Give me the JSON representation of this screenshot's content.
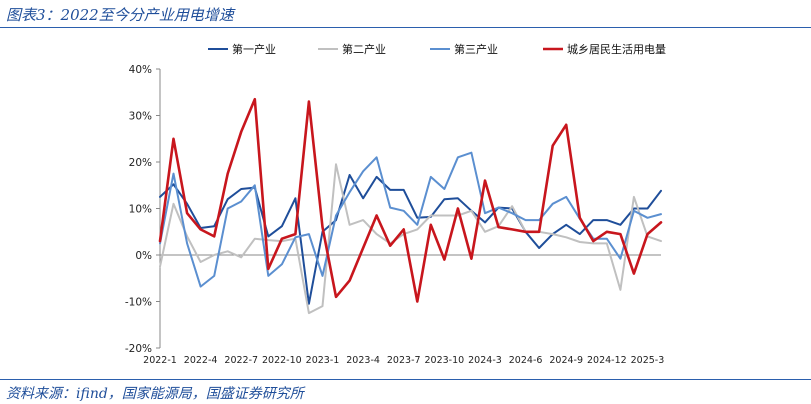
{
  "title": "图表3：2022至今分产业用电增速",
  "source": "资料来源：ifind，国家能源局，国盛证券研究所",
  "chart_data": {
    "type": "line",
    "title": "",
    "xlabel": "",
    "ylabel": "",
    "ylim": [
      -20,
      40
    ],
    "yticks": [
      -20,
      -10,
      0,
      10,
      20,
      30,
      40
    ],
    "ytick_labels": [
      "-20%",
      "-10%",
      "0%",
      "10%",
      "20%",
      "30%",
      "40%"
    ],
    "x": [
      "2022-1",
      "2022-2",
      "2022-3",
      "2022-4",
      "2022-5",
      "2022-6",
      "2022-7",
      "2022-8",
      "2022-9",
      "2022-10",
      "2022-11",
      "2022-12",
      "2023-1",
      "2023-2",
      "2023-3",
      "2023-4",
      "2023-5",
      "2023-6",
      "2023-7",
      "2023-8",
      "2023-9",
      "2023-10",
      "2023-11",
      "2023-12",
      "2024-3",
      "2024-4",
      "2024-5",
      "2024-6",
      "2024-7",
      "2024-8",
      "2024-9",
      "2024-10",
      "2024-11",
      "2024-12",
      "2025-1",
      "2025-2",
      "2025-3",
      "2025-4"
    ],
    "xtick_labels": [
      "2022-1",
      "2022-4",
      "2022-7",
      "2022-10",
      "2023-1",
      "2023-4",
      "2023-7",
      "2023-10",
      "2024-3",
      "2024-6",
      "2024-9",
      "2024-12",
      "2025-3"
    ],
    "legend_position": "top",
    "grid": false,
    "series": [
      {
        "name": "第一产业",
        "color": "#1f4e9a",
        "values": [
          12.5,
          15.2,
          11.0,
          5.8,
          6.2,
          12.0,
          14.2,
          14.5,
          4.0,
          6.2,
          12.2,
          -10.5,
          5.0,
          7.5,
          17.2,
          12.2,
          16.8,
          14.0,
          14.0,
          8.0,
          8.2,
          12.0,
          12.2,
          9.5,
          7.0,
          10.2,
          10.0,
          5.0,
          1.5,
          4.5,
          6.5,
          4.5,
          7.5,
          7.5,
          6.5,
          10.0,
          10.0,
          13.8
        ]
      },
      {
        "name": "第二产业",
        "color": "#c0c0c0",
        "values": [
          -2.5,
          11.0,
          4.0,
          -1.5,
          0.0,
          0.8,
          -0.5,
          3.5,
          3.2,
          3.0,
          3.5,
          -12.5,
          -11.0,
          19.5,
          6.5,
          7.5,
          4.5,
          2.5,
          4.5,
          5.5,
          8.5,
          8.5,
          8.5,
          9.5,
          5.0,
          6.2,
          10.5,
          5.0,
          5.0,
          4.5,
          3.8,
          2.8,
          2.5,
          2.5,
          -7.5,
          12.5,
          4.0,
          3.0
        ]
      },
      {
        "name": "第三产业",
        "color": "#5b8fd0",
        "values": [
          2.5,
          17.5,
          2.5,
          -6.8,
          -4.5,
          10.0,
          11.5,
          15.0,
          -4.5,
          -2.0,
          3.8,
          4.5,
          -4.5,
          8.5,
          13.5,
          18.0,
          21.0,
          10.2,
          9.5,
          6.5,
          16.8,
          14.2,
          21.0,
          22.0,
          9.0,
          10.2,
          9.0,
          7.5,
          7.5,
          11.0,
          12.5,
          7.8,
          3.5,
          3.5,
          -0.8,
          9.5,
          8.0,
          8.8
        ]
      },
      {
        "name": "城乡居民生活用电量",
        "color": "#c8161d",
        "values": [
          3.0,
          25.0,
          9.0,
          5.5,
          4.0,
          17.5,
          26.5,
          33.5,
          -3.0,
          3.5,
          4.5,
          33.0,
          6.0,
          -9.0,
          -5.5,
          1.5,
          8.5,
          2.0,
          5.5,
          -10.0,
          6.5,
          -1.0,
          10.0,
          -0.8,
          16.0,
          6.0,
          5.5,
          5.0,
          5.0,
          23.5,
          28.0,
          8.0,
          3.0,
          5.0,
          4.5,
          -4.0,
          4.5,
          7.0
        ]
      }
    ]
  }
}
